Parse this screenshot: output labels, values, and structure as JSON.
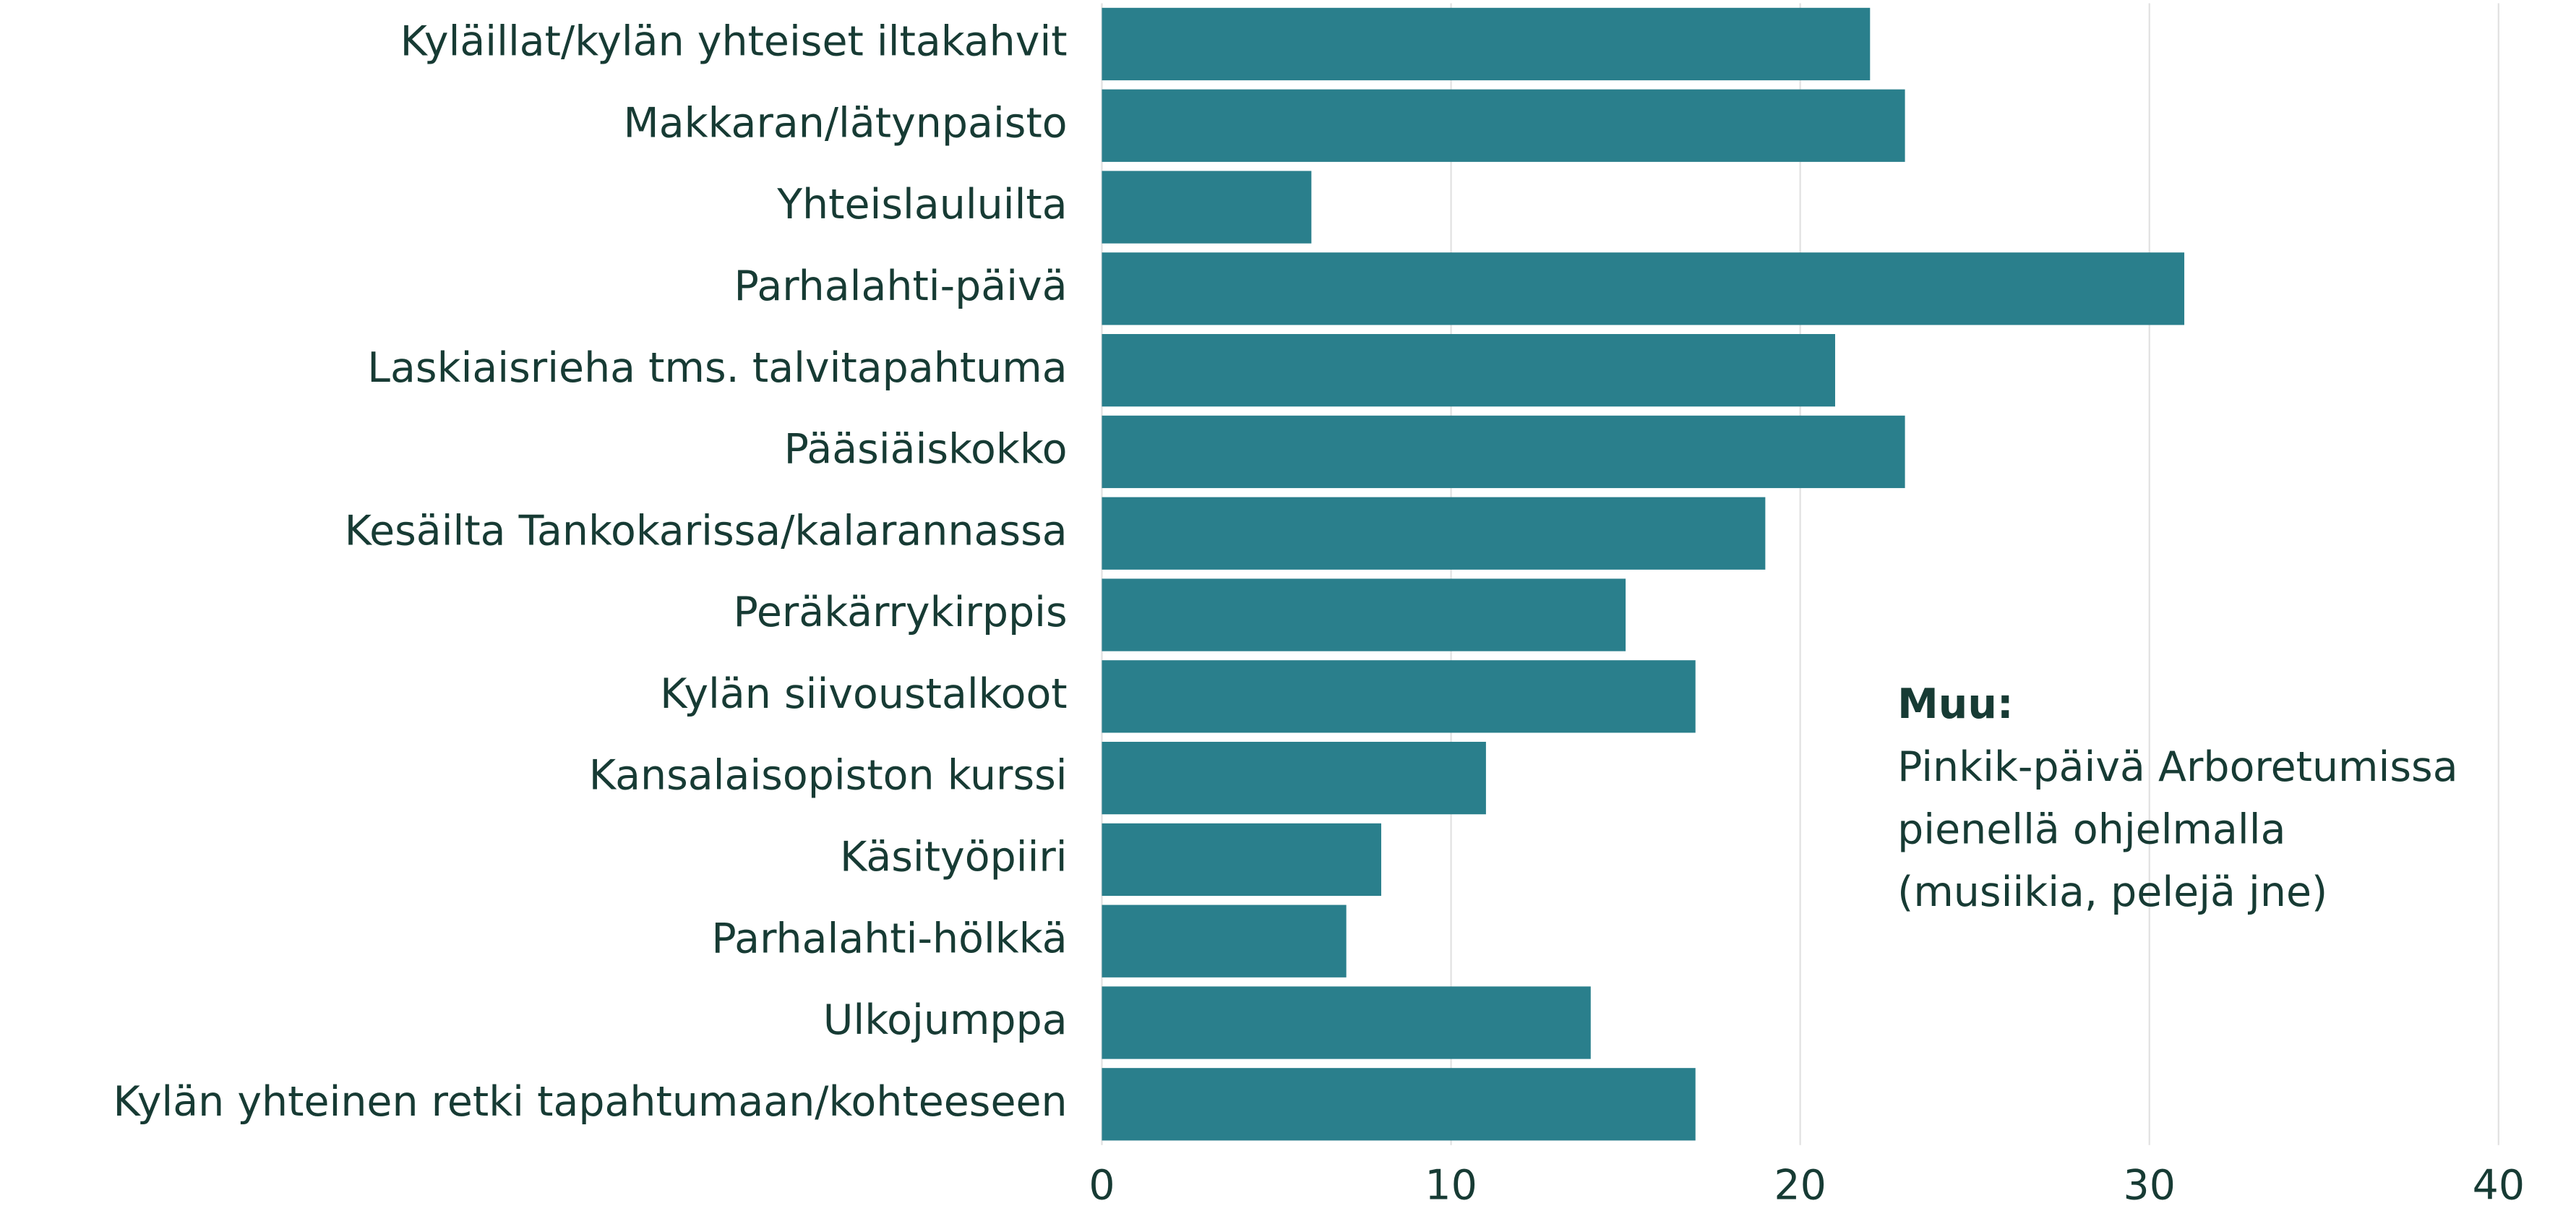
{
  "chart_data": {
    "type": "bar",
    "orientation": "horizontal",
    "categories": [
      "Kyläillat/kylän yhteiset iltakahvit",
      "Makkaran/lätynpaisto",
      "Yhteislauluilta",
      "Parhalahti-päivä",
      "Laskiaisrieha tms. talvitapahtuma",
      "Pääsiäiskokko",
      "Kesäilta Tankokarissa/kalarannassa",
      "Peräkärrykirppis",
      "Kylän siivoustalkoot",
      "Kansalaisopiston kurssi",
      "Käsityöpiiri",
      "Parhalahti-hölkkä",
      "Ulkojumppa",
      "Kylän yhteinen retki tapahtumaan/kohteeseen"
    ],
    "values": [
      22,
      23,
      6,
      31,
      21,
      23,
      19,
      15,
      17,
      11,
      8,
      7,
      14,
      17
    ],
    "color": "#2a7f8c",
    "xlim": [
      0,
      40
    ],
    "xticks": [
      0,
      10,
      20,
      30,
      40
    ],
    "grid": true,
    "annotation": {
      "title": "Muu:",
      "lines": [
        "Pinkik-päivä Arboretumissa",
        "pienellä ohjelmalla",
        "(musiikia, pelejä jne)"
      ]
    }
  }
}
